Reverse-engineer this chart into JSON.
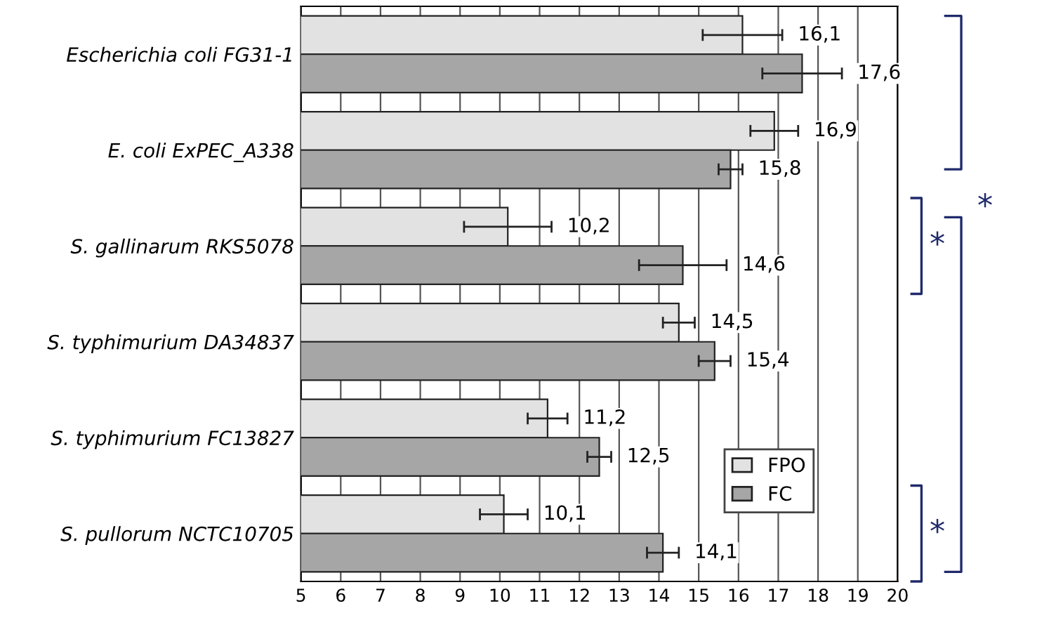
{
  "chart_data": {
    "type": "bar",
    "orientation": "horizontal",
    "categories": [
      "Escherichia coli FG31-1",
      "E. coli ExPEC_A338",
      "S. gallinarum RKS5078",
      "S. typhimurium DA34837",
      "S. typhimurium FC13827",
      "S. pullorum NCTC10705"
    ],
    "series": [
      {
        "name": "FPO",
        "color": "#e2e2e2",
        "values": [
          16.1,
          16.9,
          10.2,
          14.5,
          11.2,
          10.1
        ],
        "errors": [
          1.0,
          0.6,
          1.1,
          0.4,
          0.5,
          0.6
        ],
        "value_labels": [
          "16,1",
          "16,9",
          "10,2",
          "14,5",
          "11,2",
          "10,1"
        ]
      },
      {
        "name": "FC",
        "color": "#a6a6a6",
        "values": [
          17.6,
          15.8,
          14.6,
          15.4,
          12.5,
          14.1
        ],
        "errors": [
          1.0,
          0.3,
          1.1,
          0.4,
          0.3,
          0.4
        ],
        "value_labels": [
          "17,6",
          "15,8",
          "14,6",
          "15,4",
          "12,5",
          "14,1"
        ]
      }
    ],
    "xlim": [
      5,
      20
    ],
    "xticks": [
      5,
      6,
      7,
      8,
      9,
      10,
      11,
      12,
      13,
      14,
      15,
      16,
      17,
      18,
      19,
      20
    ],
    "grid": "x",
    "legend": "bottom right",
    "annotations": [
      "*",
      "*",
      "*"
    ]
  }
}
